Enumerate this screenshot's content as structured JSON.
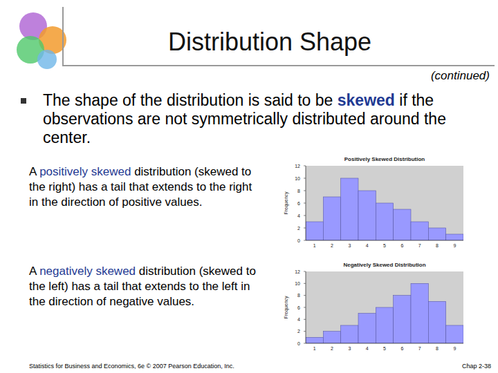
{
  "slide": {
    "title": "Distribution Shape",
    "continued": "(continued)",
    "bullet": [
      "The shape of the distribution is said to be ",
      "skewed",
      " if the observations are not symmetrically distributed around the center."
    ],
    "paragraphs": [
      [
        "A ",
        "positively skewed",
        " distribution (skewed to the right) has a tail that extends to the right in the direction of positive values."
      ],
      [
        "A ",
        "negatively skewed",
        " distribution (skewed to the left) has a tail that extends to the left in the direction of negative values."
      ]
    ],
    "footer": "Statistics for Business and Economics, 6e © 2007 Pearson Education, Inc.",
    "page": "Chap 2-38"
  },
  "chart_data": [
    {
      "type": "bar",
      "title": "Positively Skewed Distribution",
      "y_label": "Frequency",
      "categories": [
        "1",
        "2",
        "3",
        "4",
        "5",
        "6",
        "7",
        "8",
        "9"
      ],
      "values": [
        3,
        7,
        10,
        8,
        6,
        5,
        3,
        2,
        1
      ],
      "color": "#9999ff",
      "ylim": [
        0,
        12
      ],
      "yticks": [
        0,
        2,
        4,
        6,
        8,
        10,
        12
      ],
      "grid": false
    },
    {
      "type": "bar",
      "title": "Negatively Skewed Distribution",
      "y_label": "Frequency",
      "categories": [
        "1",
        "2",
        "3",
        "4",
        "5",
        "6",
        "7",
        "8",
        "9"
      ],
      "values": [
        1,
        2,
        3,
        5,
        6,
        8,
        10,
        7,
        3
      ],
      "color": "#9999ff",
      "ylim": [
        0,
        12
      ],
      "yticks": [
        0,
        2,
        4,
        6,
        8,
        10,
        12
      ],
      "grid": false
    }
  ]
}
